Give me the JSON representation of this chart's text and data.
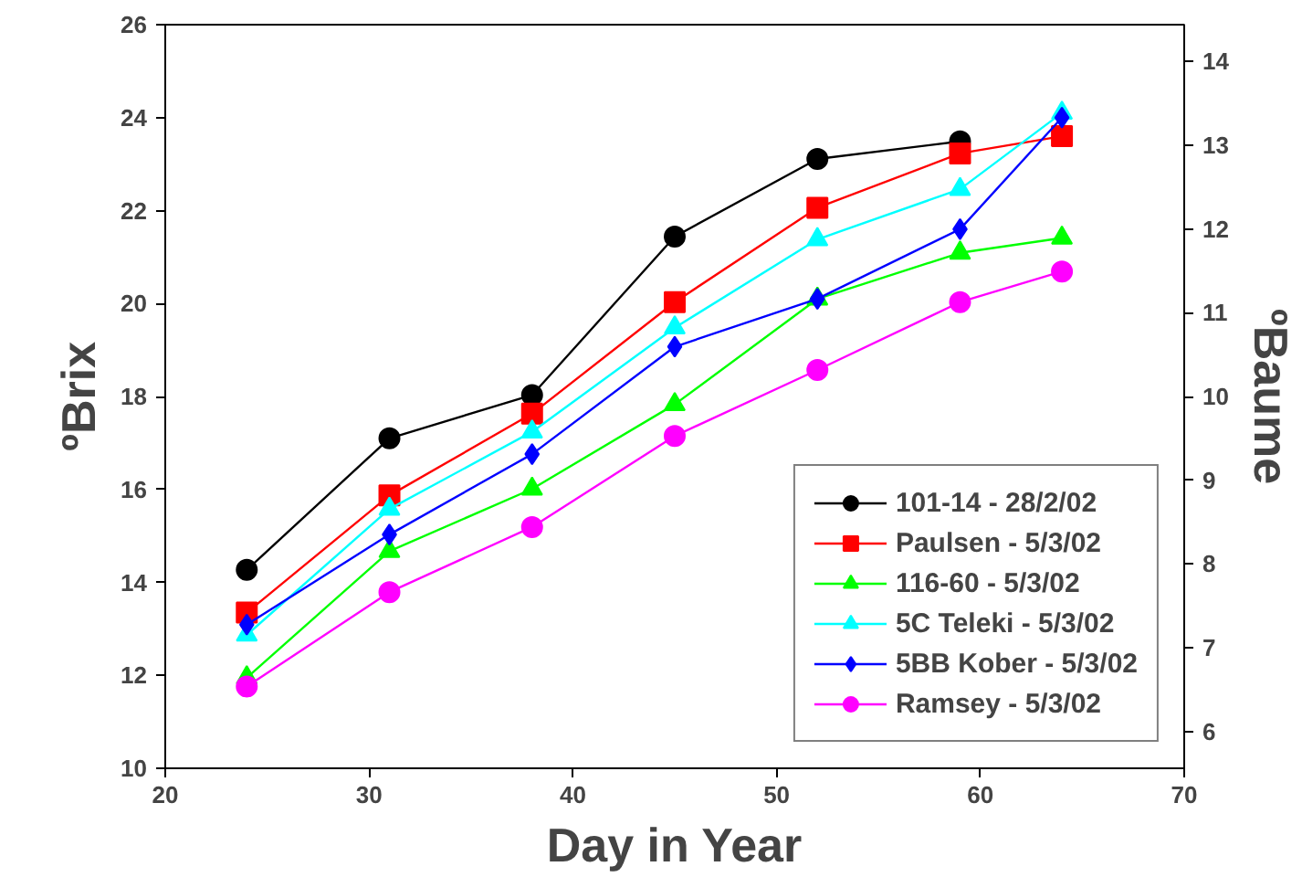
{
  "chart_data": {
    "type": "line",
    "xlabel": "Day in Year",
    "ylabel": "ºBrix",
    "y2label": "ºBaume",
    "xlim": [
      20,
      70
    ],
    "xticks": [
      20,
      30,
      40,
      50,
      60,
      70
    ],
    "ylim": [
      10,
      26
    ],
    "yticks": [
      10,
      12,
      14,
      16,
      18,
      20,
      22,
      24,
      26
    ],
    "y2lim": [
      5.56,
      14.44
    ],
    "y2ticks": [
      6,
      7,
      8,
      9,
      10,
      11,
      12,
      13,
      14
    ],
    "grid": false,
    "legend": "bottom right",
    "series": [
      {
        "name": "101-14 - 28/2/02",
        "color": "#000000",
        "marker": "circle",
        "x": [
          24,
          31,
          38,
          45,
          52,
          59
        ],
        "values": [
          14.27,
          17.1,
          18.03,
          21.44,
          23.11,
          23.49
        ]
      },
      {
        "name": "Paulsen - 5/3/02",
        "color": "#ff0000",
        "marker": "square",
        "x": [
          24,
          31,
          38,
          45,
          52,
          59,
          64
        ],
        "values": [
          13.35,
          15.87,
          17.63,
          20.03,
          22.06,
          23.23,
          23.6
        ]
      },
      {
        "name": "116-60 - 5/3/02",
        "color": "#00ff00",
        "marker": "triangle",
        "x": [
          24,
          31,
          38,
          45,
          52,
          59,
          64
        ],
        "values": [
          11.95,
          14.67,
          16.01,
          17.83,
          20.1,
          21.09,
          21.41
        ]
      },
      {
        "name": "5C Teleki - 5/3/02",
        "color": "#00ffff",
        "marker": "triangle",
        "x": [
          24,
          31,
          38,
          45,
          52,
          59,
          64
        ],
        "values": [
          12.87,
          15.58,
          17.24,
          19.48,
          21.38,
          22.46,
          24.1
        ]
      },
      {
        "name": "5BB Kober - 5/3/02",
        "color": "#0000ff",
        "marker": "diamond",
        "x": [
          24,
          31,
          38,
          45,
          52,
          59,
          64
        ],
        "values": [
          13.09,
          15.03,
          16.76,
          19.07,
          20.1,
          21.6,
          24.0
        ]
      },
      {
        "name": "Ramsey - 5/3/02",
        "color": "#ff00ff",
        "marker": "circle",
        "x": [
          24,
          31,
          38,
          45,
          52,
          59,
          64
        ],
        "values": [
          11.76,
          13.79,
          15.19,
          17.15,
          18.57,
          20.03,
          20.69
        ]
      }
    ]
  }
}
